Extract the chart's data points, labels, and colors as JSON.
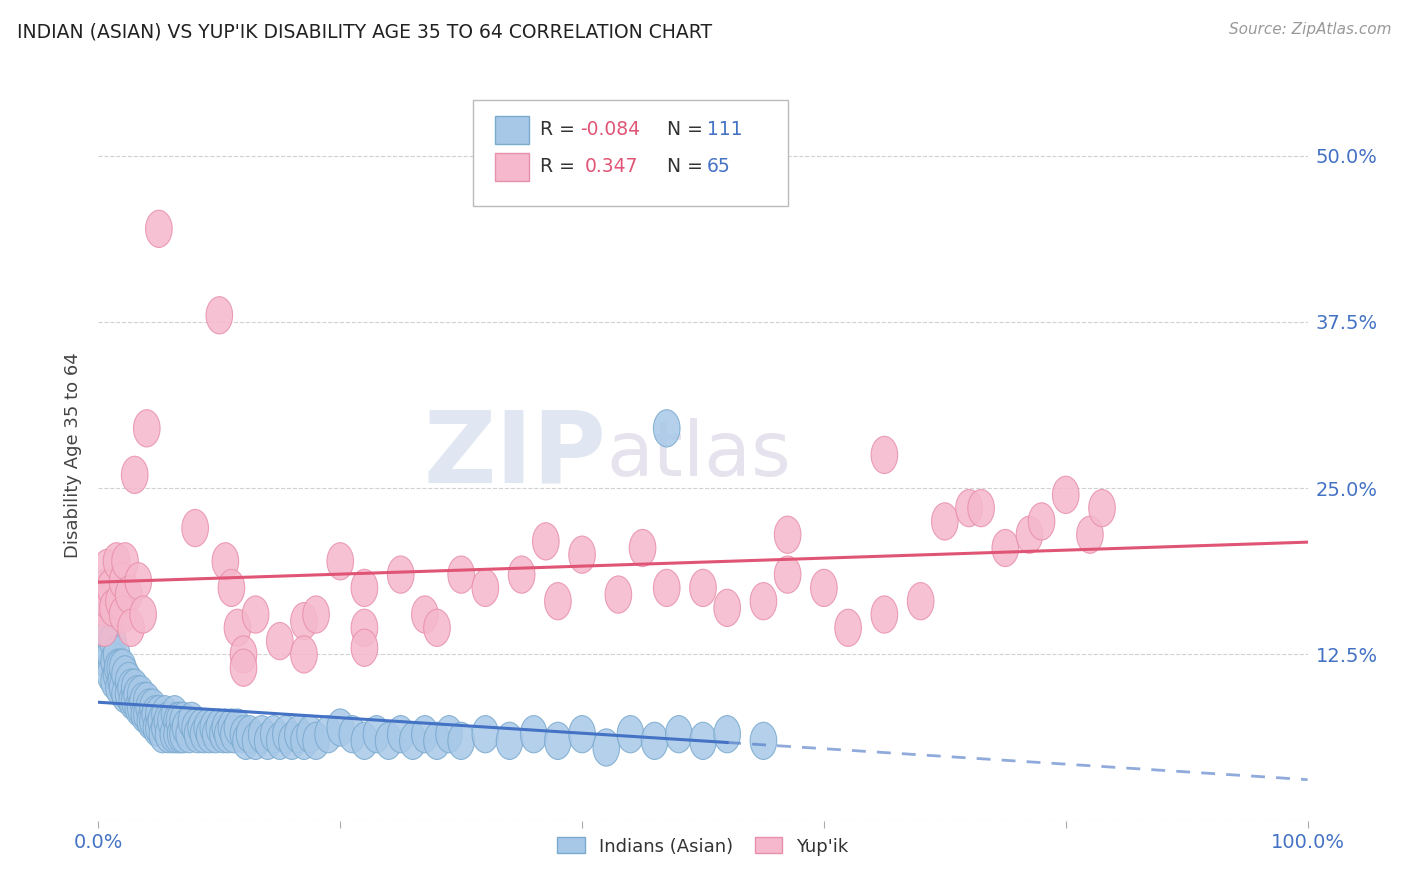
{
  "title": "INDIAN (ASIAN) VS YUP'IK DISABILITY AGE 35 TO 64 CORRELATION CHART",
  "source_text": "Source: ZipAtlas.com",
  "ylabel": "Disability Age 35 to 64",
  "xlim": [
    0.0,
    1.0
  ],
  "ylim": [
    0.0,
    0.55
  ],
  "yticks": [
    0.0,
    0.125,
    0.25,
    0.375,
    0.5
  ],
  "ytick_labels_right": [
    "",
    "12.5%",
    "25.0%",
    "37.5%",
    "50.0%"
  ],
  "xticks": [
    0.0,
    0.2,
    0.4,
    0.6,
    0.8,
    1.0
  ],
  "xtick_labels": [
    "0.0%",
    "",
    "",
    "",
    "",
    "100.0%"
  ],
  "indian_asian_color": "#a8c8e8",
  "yupik_color": "#f5b8cc",
  "indian_asian_edge_color": "#7aaace",
  "yupik_edge_color": "#e890aa",
  "indian_asian_line_color": "#4472c4",
  "yupik_line_color": "#e05575",
  "watermark_zip_color": "#d0d8e8",
  "watermark_atlas_color": "#d8d0e0",
  "background_color": "#ffffff",
  "grid_color": "#cccccc",
  "title_color": "#222222",
  "tick_label_color": "#4472c4",
  "ylabel_color": "#444444",
  "legend_R_color": "#e05575",
  "legend_N_color": "#4472c4",
  "indian_asian_points": [
    [
      0.005,
      0.145
    ],
    [
      0.005,
      0.125
    ],
    [
      0.007,
      0.13
    ],
    [
      0.008,
      0.145
    ],
    [
      0.008,
      0.12
    ],
    [
      0.009,
      0.13
    ],
    [
      0.01,
      0.14
    ],
    [
      0.01,
      0.125
    ],
    [
      0.01,
      0.11
    ],
    [
      0.012,
      0.135
    ],
    [
      0.013,
      0.12
    ],
    [
      0.013,
      0.105
    ],
    [
      0.015,
      0.125
    ],
    [
      0.015,
      0.11
    ],
    [
      0.016,
      0.115
    ],
    [
      0.017,
      0.1
    ],
    [
      0.018,
      0.115
    ],
    [
      0.019,
      0.105
    ],
    [
      0.02,
      0.115
    ],
    [
      0.02,
      0.1
    ],
    [
      0.022,
      0.11
    ],
    [
      0.022,
      0.095
    ],
    [
      0.025,
      0.105
    ],
    [
      0.025,
      0.095
    ],
    [
      0.027,
      0.1
    ],
    [
      0.028,
      0.09
    ],
    [
      0.03,
      0.1
    ],
    [
      0.03,
      0.09
    ],
    [
      0.032,
      0.095
    ],
    [
      0.033,
      0.085
    ],
    [
      0.035,
      0.095
    ],
    [
      0.035,
      0.085
    ],
    [
      0.037,
      0.09
    ],
    [
      0.038,
      0.08
    ],
    [
      0.04,
      0.09
    ],
    [
      0.04,
      0.08
    ],
    [
      0.042,
      0.085
    ],
    [
      0.043,
      0.075
    ],
    [
      0.045,
      0.085
    ],
    [
      0.045,
      0.075
    ],
    [
      0.047,
      0.08
    ],
    [
      0.048,
      0.07
    ],
    [
      0.05,
      0.08
    ],
    [
      0.05,
      0.07
    ],
    [
      0.052,
      0.075
    ],
    [
      0.053,
      0.065
    ],
    [
      0.055,
      0.08
    ],
    [
      0.055,
      0.07
    ],
    [
      0.057,
      0.075
    ],
    [
      0.058,
      0.065
    ],
    [
      0.06,
      0.075
    ],
    [
      0.062,
      0.065
    ],
    [
      0.063,
      0.08
    ],
    [
      0.065,
      0.075
    ],
    [
      0.065,
      0.065
    ],
    [
      0.067,
      0.075
    ],
    [
      0.068,
      0.065
    ],
    [
      0.07,
      0.075
    ],
    [
      0.07,
      0.065
    ],
    [
      0.072,
      0.07
    ],
    [
      0.075,
      0.065
    ],
    [
      0.077,
      0.075
    ],
    [
      0.08,
      0.07
    ],
    [
      0.082,
      0.065
    ],
    [
      0.085,
      0.07
    ],
    [
      0.087,
      0.065
    ],
    [
      0.09,
      0.07
    ],
    [
      0.092,
      0.065
    ],
    [
      0.095,
      0.07
    ],
    [
      0.097,
      0.065
    ],
    [
      0.1,
      0.07
    ],
    [
      0.103,
      0.065
    ],
    [
      0.105,
      0.07
    ],
    [
      0.107,
      0.065
    ],
    [
      0.11,
      0.07
    ],
    [
      0.112,
      0.065
    ],
    [
      0.115,
      0.07
    ],
    [
      0.12,
      0.065
    ],
    [
      0.122,
      0.06
    ],
    [
      0.125,
      0.065
    ],
    [
      0.13,
      0.06
    ],
    [
      0.135,
      0.065
    ],
    [
      0.14,
      0.06
    ],
    [
      0.145,
      0.065
    ],
    [
      0.15,
      0.06
    ],
    [
      0.155,
      0.065
    ],
    [
      0.16,
      0.06
    ],
    [
      0.165,
      0.065
    ],
    [
      0.17,
      0.06
    ],
    [
      0.175,
      0.065
    ],
    [
      0.18,
      0.06
    ],
    [
      0.19,
      0.065
    ],
    [
      0.2,
      0.07
    ],
    [
      0.21,
      0.065
    ],
    [
      0.22,
      0.06
    ],
    [
      0.23,
      0.065
    ],
    [
      0.24,
      0.06
    ],
    [
      0.25,
      0.065
    ],
    [
      0.26,
      0.06
    ],
    [
      0.27,
      0.065
    ],
    [
      0.28,
      0.06
    ],
    [
      0.29,
      0.065
    ],
    [
      0.3,
      0.06
    ],
    [
      0.32,
      0.065
    ],
    [
      0.34,
      0.06
    ],
    [
      0.36,
      0.065
    ],
    [
      0.38,
      0.06
    ],
    [
      0.4,
      0.065
    ],
    [
      0.42,
      0.055
    ],
    [
      0.44,
      0.065
    ],
    [
      0.46,
      0.06
    ],
    [
      0.48,
      0.065
    ],
    [
      0.5,
      0.06
    ],
    [
      0.52,
      0.065
    ],
    [
      0.55,
      0.06
    ],
    [
      0.47,
      0.295
    ]
  ],
  "yupik_points": [
    [
      0.005,
      0.175
    ],
    [
      0.005,
      0.16
    ],
    [
      0.005,
      0.145
    ],
    [
      0.007,
      0.19
    ],
    [
      0.008,
      0.165
    ],
    [
      0.01,
      0.175
    ],
    [
      0.012,
      0.16
    ],
    [
      0.015,
      0.195
    ],
    [
      0.017,
      0.165
    ],
    [
      0.02,
      0.18
    ],
    [
      0.02,
      0.155
    ],
    [
      0.022,
      0.195
    ],
    [
      0.025,
      0.17
    ],
    [
      0.027,
      0.145
    ],
    [
      0.03,
      0.26
    ],
    [
      0.033,
      0.18
    ],
    [
      0.037,
      0.155
    ],
    [
      0.04,
      0.295
    ],
    [
      0.05,
      0.445
    ],
    [
      0.08,
      0.22
    ],
    [
      0.1,
      0.38
    ],
    [
      0.105,
      0.195
    ],
    [
      0.11,
      0.175
    ],
    [
      0.115,
      0.145
    ],
    [
      0.12,
      0.125
    ],
    [
      0.12,
      0.115
    ],
    [
      0.13,
      0.155
    ],
    [
      0.15,
      0.135
    ],
    [
      0.17,
      0.15
    ],
    [
      0.17,
      0.125
    ],
    [
      0.18,
      0.155
    ],
    [
      0.2,
      0.195
    ],
    [
      0.22,
      0.175
    ],
    [
      0.22,
      0.145
    ],
    [
      0.22,
      0.13
    ],
    [
      0.25,
      0.185
    ],
    [
      0.27,
      0.155
    ],
    [
      0.28,
      0.145
    ],
    [
      0.3,
      0.185
    ],
    [
      0.32,
      0.175
    ],
    [
      0.35,
      0.185
    ],
    [
      0.37,
      0.21
    ],
    [
      0.38,
      0.165
    ],
    [
      0.4,
      0.2
    ],
    [
      0.43,
      0.17
    ],
    [
      0.45,
      0.205
    ],
    [
      0.47,
      0.175
    ],
    [
      0.5,
      0.175
    ],
    [
      0.52,
      0.16
    ],
    [
      0.55,
      0.165
    ],
    [
      0.57,
      0.215
    ],
    [
      0.57,
      0.185
    ],
    [
      0.6,
      0.175
    ],
    [
      0.62,
      0.145
    ],
    [
      0.65,
      0.275
    ],
    [
      0.65,
      0.155
    ],
    [
      0.68,
      0.165
    ],
    [
      0.7,
      0.225
    ],
    [
      0.72,
      0.235
    ],
    [
      0.73,
      0.235
    ],
    [
      0.75,
      0.205
    ],
    [
      0.77,
      0.215
    ],
    [
      0.78,
      0.225
    ],
    [
      0.8,
      0.245
    ],
    [
      0.82,
      0.215
    ],
    [
      0.83,
      0.235
    ]
  ],
  "blue_line_solid_end": 0.52,
  "watermark_text_zip": "ZIP",
  "watermark_text_atlas": "atlas"
}
